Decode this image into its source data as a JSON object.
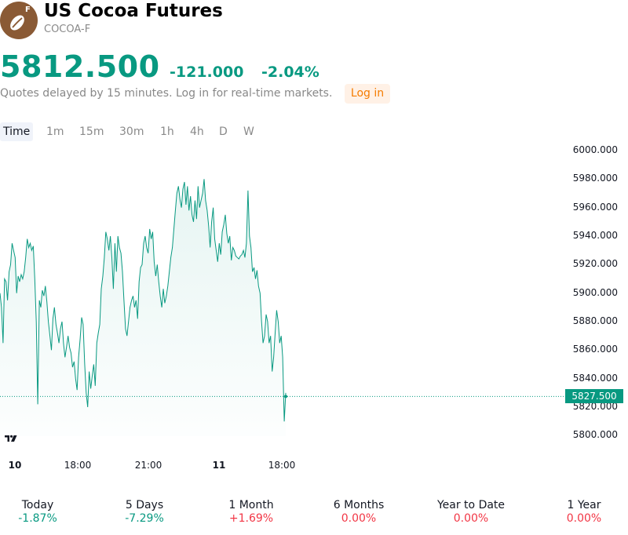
{
  "instrument": {
    "name": "US Cocoa Futures",
    "symbol": "COCOA-F",
    "logo_badge": "F",
    "logo_icon": "cocoa-bean-icon"
  },
  "quote": {
    "price": "5812.500",
    "change": "-121.000",
    "change_pct": "-2.04%",
    "delay_note": "Quotes delayed by 15 minutes. Log in for real-time markets.",
    "login_label": "Log in"
  },
  "timeframes": [
    "Time",
    "1m",
    "15m",
    "30m",
    "1h",
    "4h",
    "D",
    "W"
  ],
  "active_timeframe": "Time",
  "chart_data": {
    "type": "area",
    "y_ticks": [
      "6000.000",
      "5980.000",
      "5960.000",
      "5940.000",
      "5920.000",
      "5900.000",
      "5880.000",
      "5860.000",
      "5840.000",
      "5820.000",
      "5800.000"
    ],
    "ylim": [
      5795,
      6002
    ],
    "last_value": "5827.500",
    "x_ticks": [
      {
        "label": "10",
        "bold": true
      },
      {
        "label": "18:00",
        "bold": false
      },
      {
        "label": "21:00",
        "bold": false
      },
      {
        "label": "11",
        "bold": true
      },
      {
        "label": "18:00",
        "bold": false
      }
    ],
    "series": [
      {
        "values": [
          5900,
          5890,
          5865,
          5910,
          5908,
          5895,
          5915,
          5920,
          5935,
          5930,
          5925,
          5900,
          5912,
          5908,
          5913,
          5910,
          5915,
          5925,
          5938,
          5932,
          5935,
          5930,
          5933,
          5910,
          5880,
          5822,
          5895,
          5890,
          5902,
          5898,
          5905,
          5894,
          5880,
          5870,
          5860,
          5882,
          5890,
          5878,
          5872,
          5865,
          5875,
          5880,
          5865,
          5855,
          5862,
          5870,
          5862,
          5858,
          5848,
          5852,
          5840,
          5832,
          5855,
          5868,
          5883,
          5878,
          5850,
          5830,
          5820,
          5845,
          5833,
          5842,
          5850,
          5835,
          5865,
          5872,
          5878,
          5903,
          5912,
          5925,
          5943,
          5938,
          5930,
          5940,
          5925,
          5903,
          5935,
          5915,
          5940,
          5932,
          5928,
          5915,
          5895,
          5875,
          5870,
          5880,
          5890,
          5895,
          5898,
          5890,
          5895,
          5882,
          5908,
          5918,
          5920,
          5935,
          5940,
          5932,
          5928,
          5945,
          5938,
          5943,
          5922,
          5912,
          5920,
          5908,
          5898,
          5890,
          5903,
          5893,
          5898,
          5905,
          5915,
          5925,
          5932,
          5945,
          5958,
          5970,
          5975,
          5966,
          5960,
          5973,
          5978,
          5962,
          5975,
          5958,
          5968,
          5955,
          5950,
          5965,
          5952,
          5975,
          5960,
          5965,
          5970,
          5980,
          5965,
          5958,
          5947,
          5932,
          5950,
          5960,
          5938,
          5930,
          5922,
          5935,
          5927,
          5943,
          5948,
          5955,
          5942,
          5935,
          5940,
          5923,
          5932,
          5930,
          5926,
          5925,
          5924,
          5926,
          5927,
          5930,
          5925,
          5935,
          5972,
          5940,
          5932,
          5915,
          5918,
          5910,
          5916,
          5905,
          5900,
          5880,
          5865,
          5870,
          5885,
          5880,
          5865,
          5870,
          5845,
          5855,
          5872,
          5888,
          5880,
          5865,
          5870,
          5855,
          5810,
          5830
        ]
      }
    ]
  },
  "performance": [
    {
      "label": "Today",
      "value": "-1.87%",
      "color": "#089981"
    },
    {
      "label": "5 Days",
      "value": "-7.29%",
      "color": "#089981"
    },
    {
      "label": "1 Month",
      "value": "+1.69%",
      "color": "#f23645"
    },
    {
      "label": "6 Months",
      "value": "0.00%",
      "color": "#f23645"
    },
    {
      "label": "Year to Date",
      "value": "0.00%",
      "color": "#f23645"
    },
    {
      "label": "1 Year",
      "value": "0.00%",
      "color": "#f23645"
    }
  ],
  "colors": {
    "accent": "#089981",
    "negative": "#f23645",
    "login": "#f57c00"
  }
}
